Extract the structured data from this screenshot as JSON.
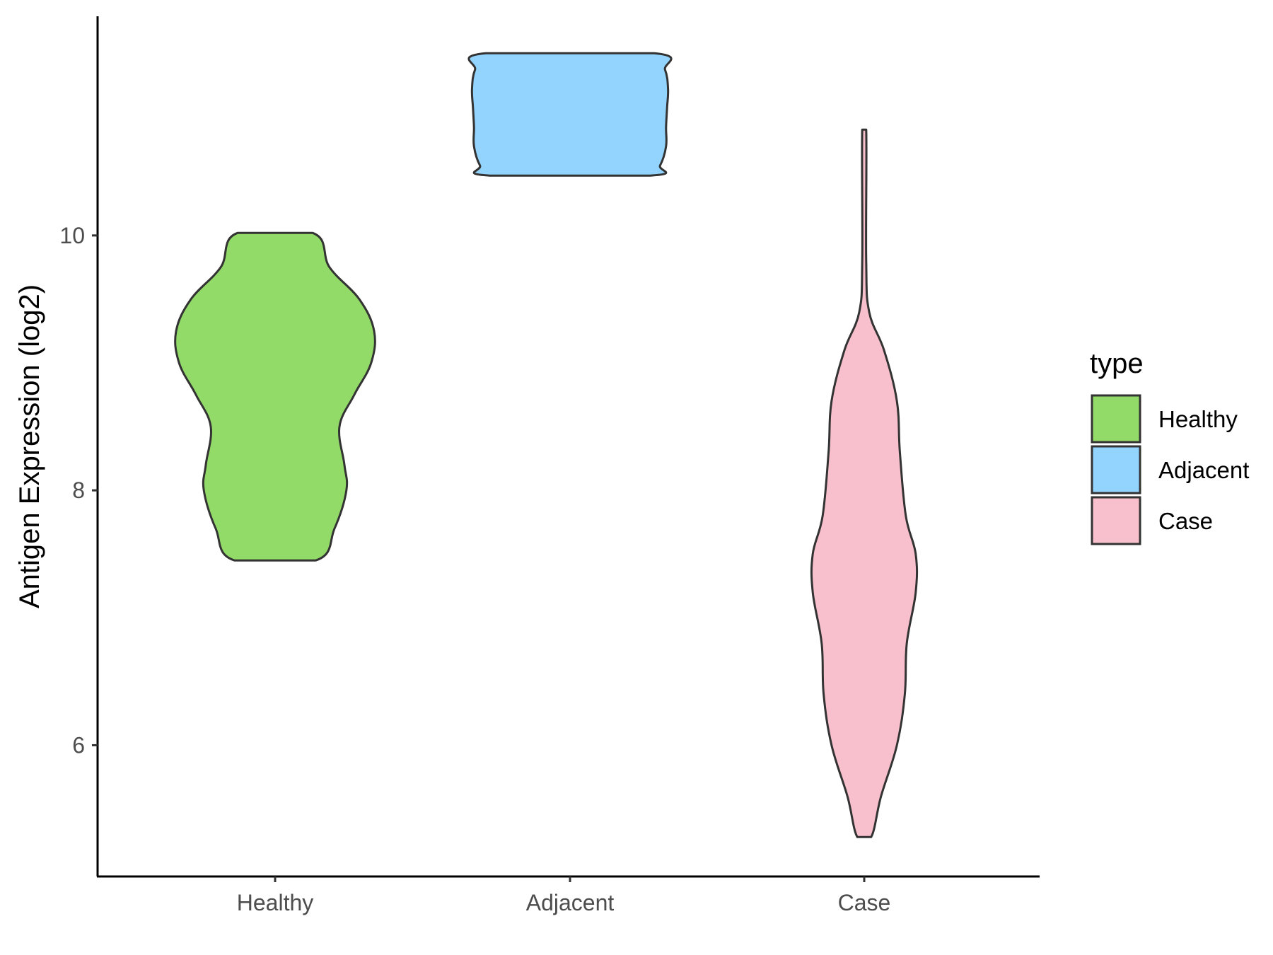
{
  "chart_data": {
    "type": "violin",
    "xlabel": "",
    "ylabel": "Antigen Expression (log2)",
    "categories": [
      "Healthy",
      "Adjacent",
      "Case"
    ],
    "ylim": [
      4.97,
      11.72
    ],
    "yticks": [
      6,
      8,
      10
    ],
    "grid": false,
    "legend": {
      "title": "type",
      "placement": "right",
      "entries": [
        "Healthy",
        "Adjacent",
        "Case"
      ]
    },
    "series": [
      {
        "category": "Healthy",
        "color": "#93DB69",
        "min": 7.45,
        "max": 10.02,
        "density_profile": [
          [
            7.45,
            0.41
          ],
          [
            7.7,
            0.6
          ],
          [
            8.0,
            0.72
          ],
          [
            8.2,
            0.7
          ],
          [
            8.5,
            0.65
          ],
          [
            8.75,
            0.8
          ],
          [
            9.0,
            0.97
          ],
          [
            9.25,
            1.0
          ],
          [
            9.5,
            0.85
          ],
          [
            9.75,
            0.55
          ],
          [
            10.02,
            0.38
          ]
        ]
      },
      {
        "category": "Adjacent",
        "color": "#93D4FE",
        "min": 10.47,
        "max": 11.43,
        "density_profile": [
          [
            10.47,
            0.81
          ],
          [
            10.55,
            0.91
          ],
          [
            10.7,
            0.97
          ],
          [
            10.85,
            0.97
          ],
          [
            11.0,
            0.98
          ],
          [
            11.15,
            0.99
          ],
          [
            11.3,
            0.96
          ],
          [
            11.43,
            0.85
          ]
        ]
      },
      {
        "category": "Case",
        "color": "#F7C0CC",
        "min": 5.28,
        "max": 10.83,
        "density_profile": [
          [
            5.28,
            0.07
          ],
          [
            5.6,
            0.17
          ],
          [
            6.0,
            0.33
          ],
          [
            6.4,
            0.41
          ],
          [
            6.8,
            0.43
          ],
          [
            7.2,
            0.52
          ],
          [
            7.5,
            0.52
          ],
          [
            7.8,
            0.42
          ],
          [
            8.3,
            0.36
          ],
          [
            8.7,
            0.33
          ],
          [
            9.1,
            0.2
          ],
          [
            9.4,
            0.05
          ],
          [
            9.8,
            0.02
          ],
          [
            10.83,
            0.02
          ]
        ]
      }
    ]
  }
}
